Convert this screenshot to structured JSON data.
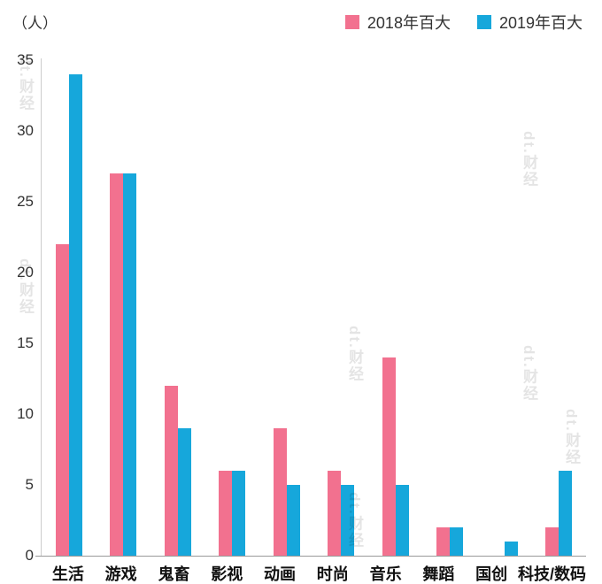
{
  "chart_data": {
    "type": "bar",
    "title": "",
    "unit_label": "（人）",
    "categories": [
      "生活",
      "游戏",
      "鬼畜",
      "影视",
      "动画",
      "时尚",
      "音乐",
      "舞蹈",
      "国创",
      "科技/数码"
    ],
    "series": [
      {
        "name": "2018年百大",
        "color": "#F2718F",
        "values": [
          22,
          27,
          12,
          6,
          9,
          6,
          14,
          2,
          0,
          2
        ]
      },
      {
        "name": "2019年百大",
        "color": "#16A7DB",
        "values": [
          34,
          27,
          9,
          6,
          5,
          5,
          5,
          2,
          1,
          6
        ]
      }
    ],
    "ylim": [
      0,
      35
    ],
    "yticks": [
      0,
      5,
      10,
      15,
      20,
      25,
      30,
      35
    ],
    "ylabel": "（人）",
    "xlabel": "",
    "grid": false,
    "legend_position": "top-right"
  },
  "watermark": {
    "text": "dt.财经"
  }
}
